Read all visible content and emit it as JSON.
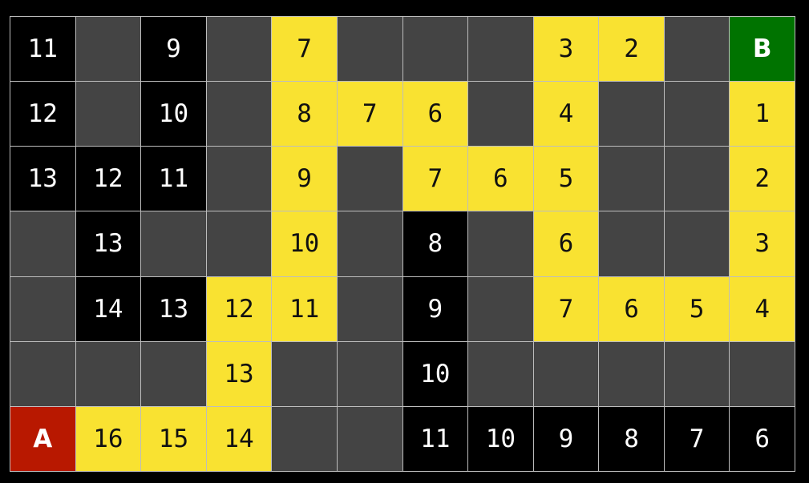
{
  "colors": {
    "wall": "#444444",
    "explored": "#000000",
    "path": "#f9e231",
    "start": "#b81800",
    "goal": "#007300"
  },
  "grid": [
    [
      [
        "explored",
        "11"
      ],
      [
        "wall",
        ""
      ],
      [
        "explored",
        "9"
      ],
      [
        "wall",
        ""
      ],
      [
        "path",
        "7"
      ],
      [
        "wall",
        ""
      ],
      [
        "wall",
        ""
      ],
      [
        "wall",
        ""
      ],
      [
        "path",
        "3"
      ],
      [
        "path",
        "2"
      ],
      [
        "wall",
        ""
      ],
      [
        "goal",
        "B"
      ]
    ],
    [
      [
        "explored",
        "12"
      ],
      [
        "wall",
        ""
      ],
      [
        "explored",
        "10"
      ],
      [
        "wall",
        ""
      ],
      [
        "path",
        "8"
      ],
      [
        "path",
        "7"
      ],
      [
        "path",
        "6"
      ],
      [
        "wall",
        ""
      ],
      [
        "path",
        "4"
      ],
      [
        "wall",
        ""
      ],
      [
        "wall",
        ""
      ],
      [
        "path",
        "1"
      ]
    ],
    [
      [
        "explored",
        "13"
      ],
      [
        "explored",
        "12"
      ],
      [
        "explored",
        "11"
      ],
      [
        "wall",
        ""
      ],
      [
        "path",
        "9"
      ],
      [
        "wall",
        ""
      ],
      [
        "path",
        "7"
      ],
      [
        "path",
        "6"
      ],
      [
        "path",
        "5"
      ],
      [
        "wall",
        ""
      ],
      [
        "wall",
        ""
      ],
      [
        "path",
        "2"
      ]
    ],
    [
      [
        "wall",
        ""
      ],
      [
        "explored",
        "13"
      ],
      [
        "wall",
        ""
      ],
      [
        "wall",
        ""
      ],
      [
        "path",
        "10"
      ],
      [
        "wall",
        ""
      ],
      [
        "explored",
        "8"
      ],
      [
        "wall",
        ""
      ],
      [
        "path",
        "6"
      ],
      [
        "wall",
        ""
      ],
      [
        "wall",
        ""
      ],
      [
        "path",
        "3"
      ]
    ],
    [
      [
        "wall",
        ""
      ],
      [
        "explored",
        "14"
      ],
      [
        "explored",
        "13"
      ],
      [
        "path",
        "12"
      ],
      [
        "path",
        "11"
      ],
      [
        "wall",
        ""
      ],
      [
        "explored",
        "9"
      ],
      [
        "wall",
        ""
      ],
      [
        "path",
        "7"
      ],
      [
        "path",
        "6"
      ],
      [
        "path",
        "5"
      ],
      [
        "path",
        "4"
      ]
    ],
    [
      [
        "wall",
        ""
      ],
      [
        "wall",
        ""
      ],
      [
        "wall",
        ""
      ],
      [
        "path",
        "13"
      ],
      [
        "wall",
        ""
      ],
      [
        "wall",
        ""
      ],
      [
        "explored",
        "10"
      ],
      [
        "wall",
        ""
      ],
      [
        "wall",
        ""
      ],
      [
        "wall",
        ""
      ],
      [
        "wall",
        ""
      ],
      [
        "wall",
        ""
      ]
    ],
    [
      [
        "start",
        "A"
      ],
      [
        "path",
        "16"
      ],
      [
        "path",
        "15"
      ],
      [
        "path",
        "14"
      ],
      [
        "wall",
        ""
      ],
      [
        "wall",
        ""
      ],
      [
        "explored",
        "11"
      ],
      [
        "explored",
        "10"
      ],
      [
        "explored",
        "9"
      ],
      [
        "explored",
        "8"
      ],
      [
        "explored",
        "7"
      ],
      [
        "explored",
        "6"
      ]
    ]
  ]
}
